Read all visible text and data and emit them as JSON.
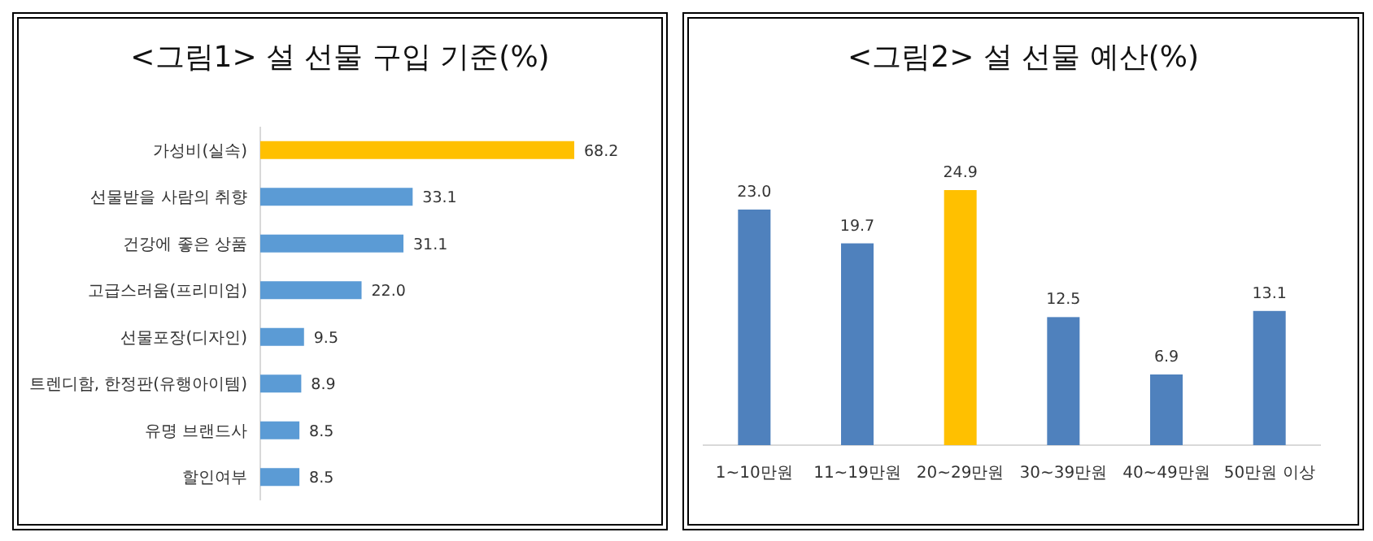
{
  "chart_data": [
    {
      "type": "bar",
      "orientation": "horizontal",
      "title": "<그림1> 설 선물 구입 기준(%)",
      "categories": [
        "가성비(실속)",
        "선물받을 사람의 취향",
        "건강에 좋은 상품",
        "고급스러움(프리미엄)",
        "선물포장(디자인)",
        "트렌디함, 한정판(유행아이템)",
        "유명 브랜드사",
        "할인여부"
      ],
      "values": [
        68.2,
        33.1,
        31.1,
        22.0,
        9.5,
        8.9,
        8.5,
        8.5
      ],
      "colors": [
        "#ffc000",
        "#5b9bd5",
        "#5b9bd5",
        "#5b9bd5",
        "#5b9bd5",
        "#5b9bd5",
        "#5b9bd5",
        "#5b9bd5"
      ],
      "value_labels": [
        "68.2",
        "33.1",
        "31.1",
        "22.0",
        "9.5",
        "8.9",
        "8.5",
        "8.5"
      ]
    },
    {
      "type": "bar",
      "title": "<그림2> 설 선물 예산(%)",
      "categories": [
        "1~10만원",
        "11~19만원",
        "20~29만원",
        "30~39만원",
        "40~49만원",
        "50만원 이상"
      ],
      "values": [
        23.0,
        19.7,
        24.9,
        12.5,
        6.9,
        13.1
      ],
      "colors": [
        "#4f81bd",
        "#4f81bd",
        "#ffc000",
        "#4f81bd",
        "#4f81bd",
        "#4f81bd"
      ],
      "value_labels": [
        "23.0",
        "19.7",
        "24.9",
        "12.5",
        "6.9",
        "13.1"
      ]
    }
  ]
}
